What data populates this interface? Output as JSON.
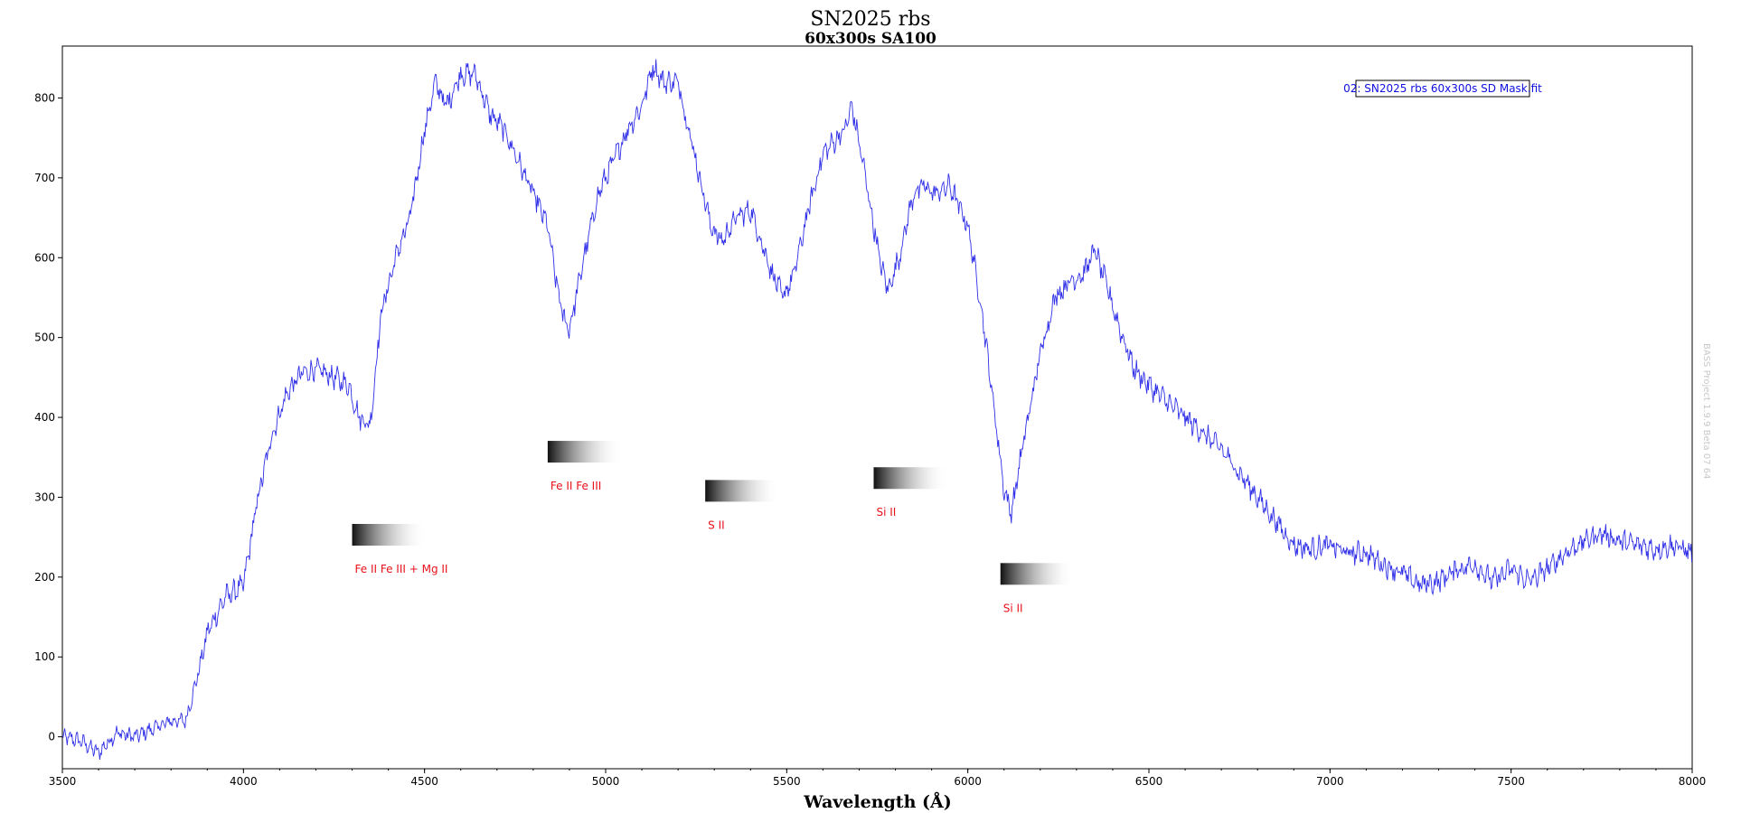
{
  "chart_data": {
    "type": "line",
    "title": "SN2025 rbs",
    "subtitle": "60x300s SA100",
    "xlabel": "Wavelength (Å)",
    "ylabel": "",
    "xlim": [
      3500,
      8000
    ],
    "ylim": [
      -40,
      865
    ],
    "xticks": [
      3500,
      4000,
      4500,
      5000,
      5500,
      6000,
      6500,
      7000,
      7500,
      8000
    ],
    "yticks": [
      0,
      100,
      200,
      300,
      400,
      500,
      600,
      700,
      800
    ],
    "grid": false,
    "legend": {
      "placement": "top-right",
      "entries": [
        "02: SN2025 rbs 60x300s SD Mask.fit"
      ]
    },
    "watermark": "BASS Project 1.9.9 Beta 07 64",
    "series": [
      {
        "name": "02: SN2025 rbs 60x300s SD Mask.fit",
        "color": "#3030e8",
        "x": [
          3500,
          3550,
          3600,
          3650,
          3700,
          3750,
          3800,
          3840,
          3870,
          3900,
          3950,
          4000,
          4040,
          4080,
          4120,
          4160,
          4200,
          4250,
          4290,
          4320,
          4350,
          4380,
          4420,
          4460,
          4500,
          4530,
          4560,
          4600,
          4640,
          4680,
          4720,
          4760,
          4800,
          4840,
          4860,
          4880,
          4900,
          4940,
          4980,
          5020,
          5060,
          5100,
          5130,
          5160,
          5200,
          5230,
          5260,
          5290,
          5320,
          5360,
          5400,
          5430,
          5460,
          5490,
          5520,
          5560,
          5600,
          5640,
          5660,
          5680,
          5710,
          5740,
          5760,
          5780,
          5810,
          5850,
          5880,
          5910,
          5950,
          5980,
          6000,
          6040,
          6070,
          6100,
          6120,
          6150,
          6200,
          6240,
          6280,
          6320,
          6350,
          6380,
          6420,
          6460,
          6500,
          6550,
          6600,
          6650,
          6700,
          6750,
          6800,
          6850,
          6900,
          6950,
          7000,
          7050,
          7100,
          7150,
          7200,
          7250,
          7300,
          7350,
          7400,
          7450,
          7500,
          7550,
          7600,
          7650,
          7700,
          7750,
          7800,
          7850,
          7900,
          7950,
          8000
        ],
        "y": [
          0,
          -5,
          -20,
          5,
          0,
          10,
          20,
          20,
          70,
          130,
          175,
          190,
          300,
          380,
          430,
          455,
          460,
          450,
          440,
          400,
          390,
          530,
          600,
          650,
          760,
          820,
          790,
          830,
          830,
          780,
          760,
          720,
          680,
          640,
          580,
          530,
          510,
          600,
          680,
          720,
          760,
          790,
          840,
          820,
          820,
          760,
          700,
          640,
          620,
          650,
          660,
          620,
          580,
          550,
          580,
          660,
          730,
          750,
          760,
          790,
          720,
          640,
          590,
          560,
          600,
          680,
          690,
          680,
          690,
          660,
          640,
          530,
          420,
          310,
          280,
          360,
          480,
          550,
          570,
          580,
          610,
          570,
          510,
          460,
          440,
          420,
          400,
          380,
          360,
          330,
          300,
          270,
          240,
          235,
          240,
          230,
          230,
          215,
          205,
          190,
          195,
          210,
          215,
          195,
          210,
          195,
          210,
          230,
          245,
          255,
          245,
          240,
          235,
          240,
          230
        ]
      }
    ],
    "annotations": [
      {
        "label": "Fe II Fe III + Mg II",
        "x": 4300,
        "y": 253
      },
      {
        "label": "Fe II Fe III",
        "x": 4840,
        "y": 357
      },
      {
        "label": "S II",
        "x": 5275,
        "y": 308
      },
      {
        "label": "Si II",
        "x": 5740,
        "y": 324
      },
      {
        "label": "Si II",
        "x": 6090,
        "y": 204
      }
    ]
  }
}
